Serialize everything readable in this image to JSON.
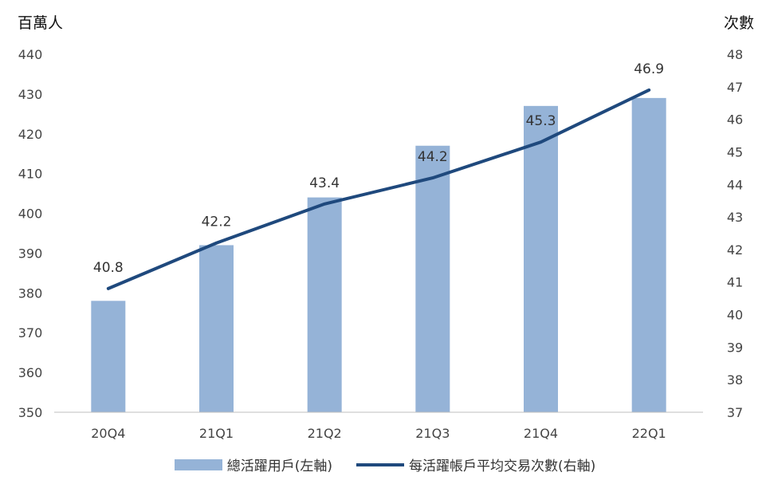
{
  "chart_data": {
    "type": "bar",
    "categories": [
      "20Q4",
      "21Q1",
      "21Q2",
      "21Q3",
      "21Q4",
      "22Q1"
    ],
    "series": [
      {
        "name": "總活躍用戶(左軸)",
        "type": "bar",
        "axis": "left",
        "values": [
          378,
          392,
          404,
          417,
          427,
          429
        ],
        "color": "#95b3d7"
      },
      {
        "name": "每活躍帳戶平均交易次數(右軸)",
        "type": "line",
        "axis": "right",
        "values": [
          40.8,
          42.2,
          43.4,
          44.2,
          45.3,
          46.9
        ],
        "color": "#1f497d"
      }
    ],
    "ylabel": "百萬人",
    "y2label": "次數",
    "ylim": [
      350,
      440
    ],
    "y2lim": [
      37,
      48
    ],
    "yticks": [
      350,
      360,
      370,
      380,
      390,
      400,
      410,
      420,
      430,
      440
    ],
    "y2ticks": [
      37,
      38,
      39,
      40,
      41,
      42,
      43,
      44,
      45,
      46,
      47,
      48
    ],
    "legend": "bottom",
    "grid": false
  }
}
